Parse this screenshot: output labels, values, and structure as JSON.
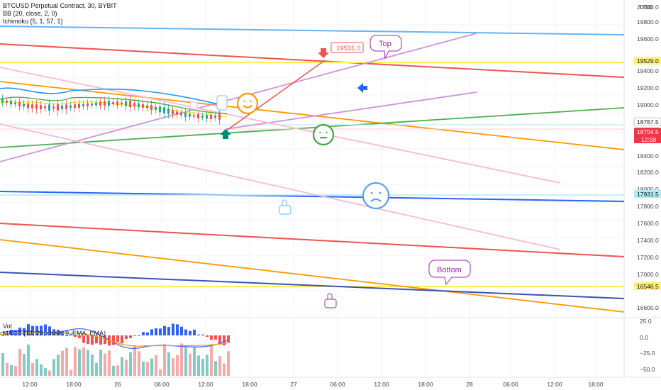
{
  "legend": {
    "symbol": "BTCUSD Perpetual Contract, 30, BYBIT",
    "bb": "BB (20, close, 2, 0)",
    "ichimoku": "Ichimoku (5, 1, 57, 1)"
  },
  "lower_legend": {
    "vol": "Vol",
    "macd": "MACD (12, 26, close, 9, EMA, EMA)"
  },
  "currency": "USD",
  "price_ticks": [
    "20000.0",
    "19800.0",
    "19600.0",
    "19400.0",
    "19200.0",
    "19000.0",
    "18400.0",
    "18200.0",
    "18000.0",
    "17800.0",
    "17600.0",
    "17400.0",
    "17200.0",
    "17000.0",
    "16600.0"
  ],
  "price_badges": [
    {
      "text": "19529.0",
      "color": "#fff176",
      "text_color": "#131722"
    },
    {
      "text": "18767.5",
      "color": "#ffffff",
      "text_color": "#131722",
      "border": "#9e9e9e"
    },
    {
      "text": "18704.5",
      "sub": "12:58",
      "color": "#f23645",
      "text_color": "#ffffff"
    },
    {
      "text": "17931.5",
      "color": "#b2ebf2",
      "text_color": "#131722"
    },
    {
      "text": "16546.5",
      "color": "#fff176",
      "text_color": "#131722"
    }
  ],
  "macd_ticks": [
    "25.0",
    "0.0",
    "−25.0",
    "−50.0"
  ],
  "time_ticks": [
    "12:00",
    "18:00",
    "26",
    "06:00",
    "12:00",
    "18:00",
    "27",
    "06:00",
    "12:00",
    "18:00",
    "28",
    "06:00",
    "12:00",
    "18:00"
  ],
  "annotations": {
    "target_price": "19531.0",
    "top_label": "Top",
    "bottom_label": "Bottom"
  },
  "icons": {
    "happy": "smiling-face-icon",
    "neutral": "neutral-face-icon",
    "sad": "sad-face-icon",
    "hand_up": "pointing-hand-up-icon",
    "hand_down": "pointing-hand-icon",
    "arrow_left": "arrow-left-icon",
    "arrow_down": "arrow-down-icon",
    "arrow_up": "arrow-up-icon"
  },
  "colors": {
    "red_line": "#ef5350",
    "orange_line": "#ff9800",
    "blue_line": "#2962ff",
    "light_blue_line": "#64b5f6",
    "violet_line": "#ce93d8",
    "pink_line": "#f8bbd0",
    "green_line": "#4caf50",
    "yellow_line": "#ffee58",
    "bull": "#26a69a",
    "bear": "#ef5350"
  },
  "chart_data": {
    "type": "line",
    "symbol": "BTCUSD Perpetual Contract",
    "exchange": "BYBIT",
    "timeframe": "30",
    "last_price": 18704.5,
    "price_levels": {
      "target": 19531.0,
      "resistance": 19529.0,
      "reference": 18767.5,
      "support": 17931.5,
      "bottom": 16546.5
    },
    "y_axis": {
      "min": 16500,
      "max": 20100,
      "unit": "USD"
    },
    "macd_axis": {
      "min": -55,
      "max": 28
    },
    "x_labels": [
      "12:00",
      "18:00",
      "26",
      "06:00",
      "12:00",
      "18:00",
      "27",
      "06:00",
      "12:00",
      "18:00",
      "28",
      "06:00",
      "12:00",
      "18:00"
    ]
  }
}
